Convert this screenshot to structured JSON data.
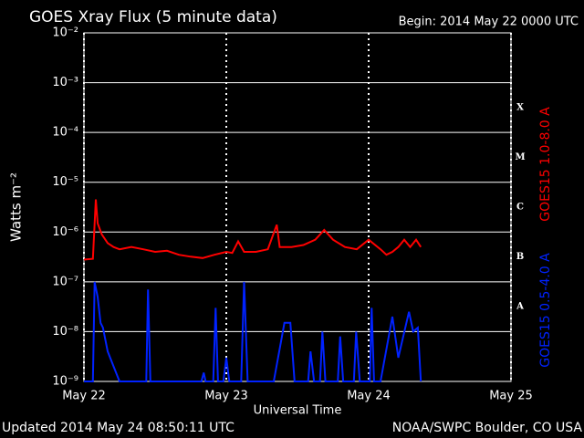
{
  "chart_data": {
    "type": "line",
    "title": "GOES Xray Flux (5 minute data)",
    "subtitle": "Begin:  2014 May 22 0000 UTC",
    "y_label": "Watts m⁻²",
    "x_label": "Universal Time",
    "footer_left": "Updated 2014 May 24 08:50:11 UTC",
    "footer_right": "NOAA/SWPC Boulder, CO USA",
    "class_labels": [
      "X",
      "M",
      "C",
      "B",
      "A"
    ],
    "log_scale": true,
    "grid": true,
    "xlim": [
      0,
      72
    ],
    "xticks": [
      {
        "value": 0,
        "label": "May 22"
      },
      {
        "value": 24,
        "label": "May 23"
      },
      {
        "value": 48,
        "label": "May 24"
      },
      {
        "value": 72,
        "label": "May 25"
      }
    ],
    "ylim": [
      1e-09,
      0.01
    ],
    "yticks": [
      {
        "value": 1e-09,
        "label": "10⁻⁹"
      },
      {
        "value": 1e-08,
        "label": "10⁻⁸"
      },
      {
        "value": 1e-07,
        "label": "10⁻⁷"
      },
      {
        "value": 1e-06,
        "label": "10⁻⁶"
      },
      {
        "value": 1e-05,
        "label": "10⁻⁵"
      },
      {
        "value": 0.0001,
        "label": "10⁻⁴"
      },
      {
        "value": 0.001,
        "label": "10⁻³"
      },
      {
        "value": 0.01,
        "label": "10⁻²"
      }
    ],
    "series": [
      {
        "name": "GOES15 1.0-8.0 A",
        "color": "#ff0000",
        "x": [
          0,
          1.5,
          2,
          2.3,
          3,
          4,
          5,
          6,
          8,
          10,
          12,
          14,
          16,
          18,
          20,
          22,
          24,
          25,
          26,
          27,
          29,
          31,
          32.5,
          33,
          35,
          37,
          39,
          40.5,
          42,
          44,
          46,
          48,
          50,
          51,
          52,
          53,
          54,
          55,
          56,
          56.8
        ],
        "values": [
          2.8e-07,
          2.9e-07,
          4.5e-06,
          1.5e-06,
          9e-07,
          6e-07,
          5e-07,
          4.5e-07,
          5e-07,
          4.5e-07,
          4e-07,
          4.2e-07,
          3.5e-07,
          3.2e-07,
          3e-07,
          3.5e-07,
          4e-07,
          3.8e-07,
          6.5e-07,
          4e-07,
          4e-07,
          4.5e-07,
          1.4e-06,
          5e-07,
          5e-07,
          5.5e-07,
          7e-07,
          1.1e-06,
          7e-07,
          5e-07,
          4.5e-07,
          7e-07,
          4.5e-07,
          3.5e-07,
          4e-07,
          5e-07,
          7e-07,
          5e-07,
          7e-07,
          5e-07
        ]
      },
      {
        "name": "GOES15 0.5-4.0 A",
        "color": "#0022ff",
        "x": [
          0,
          1.5,
          1.8,
          2.3,
          2.8,
          3.2,
          4,
          5,
          6,
          10.5,
          10.8,
          11.2,
          19.8,
          20.2,
          20.5,
          21.8,
          22.2,
          22.6,
          23.5,
          24,
          24.5,
          26.5,
          27,
          27.6,
          32,
          33.8,
          34.8,
          35.5,
          37.8,
          38.2,
          38.8,
          39.8,
          40.2,
          40.7,
          42.8,
          43.2,
          43.7,
          45.5,
          45.9,
          46.5,
          48.2,
          48.5,
          48.9,
          50,
          52,
          53,
          54.8,
          55.5,
          56.3,
          56.8
        ],
        "values": [
          1e-09,
          1e-09,
          1e-07,
          5e-08,
          1.5e-08,
          1.2e-08,
          4e-09,
          2e-09,
          1e-09,
          1e-09,
          7e-08,
          1e-09,
          1e-09,
          1.5e-09,
          1e-09,
          1e-09,
          3e-08,
          1e-09,
          1e-09,
          3e-09,
          1e-09,
          1e-09,
          1e-07,
          1e-09,
          1e-09,
          1.5e-08,
          1.5e-08,
          1e-09,
          1e-09,
          4e-09,
          1e-09,
          1e-09,
          1e-08,
          1e-09,
          1e-09,
          8e-09,
          1e-09,
          1e-09,
          1e-08,
          1e-09,
          1e-09,
          3e-08,
          1e-09,
          1e-09,
          2e-08,
          3e-09,
          2.5e-08,
          1e-08,
          1.2e-08,
          1e-09
        ]
      }
    ]
  }
}
